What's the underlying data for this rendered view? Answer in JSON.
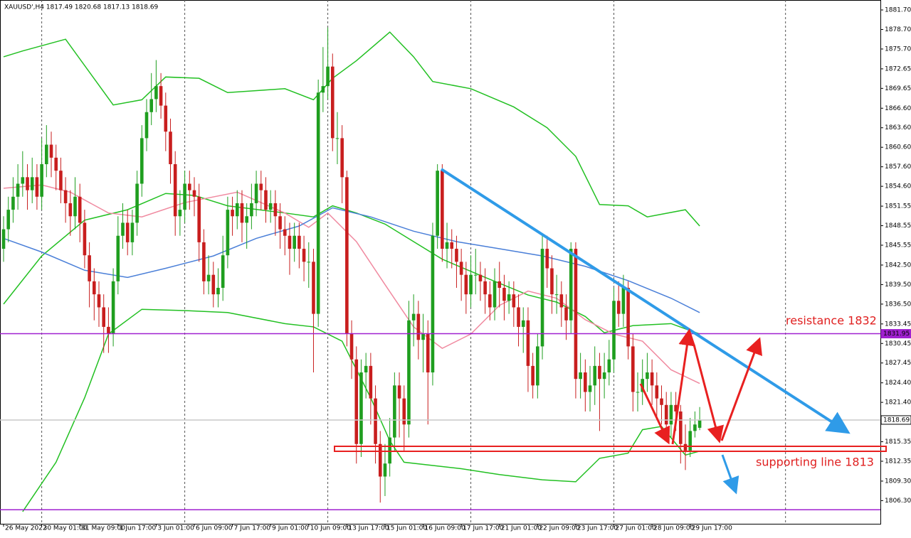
{
  "chart_data": {
    "type": "candlestick",
    "title": "XAUUSD',H4  1817.49 1820.68 1817.13 1818.69",
    "up_color": "#1f9e1f",
    "down_color": "#c81e1e",
    "open": [
      1845,
      1848,
      1851,
      1853,
      1855,
      1856,
      1854,
      1856,
      1853,
      1858,
      1861,
      1859,
      1857,
      1854,
      1852,
      1850,
      1853,
      1849,
      1844,
      1840,
      1838,
      1836,
      1833,
      1832,
      1840,
      1847,
      1849,
      1846,
      1849,
      1855,
      1862,
      1866,
      1868,
      1870,
      1867,
      1863,
      1858,
      1850,
      1851,
      1855,
      1854,
      1853,
      1846,
      1840,
      1841,
      1838,
      1839,
      1844,
      1851,
      1850,
      1852,
      1849,
      1850,
      1852,
      1855,
      1854,
      1851,
      1852,
      1850,
      1848,
      1847,
      1845,
      1847,
      1845,
      1843,
      1843,
      1835,
      1869,
      1870,
      1873,
      1862,
      1862,
      1856,
      1832,
      1828,
      1815,
      1826,
      1827,
      1822,
      1815,
      1810,
      1812,
      1816,
      1824,
      1822,
      1818,
      1834,
      1835,
      1831,
      1832,
      1826,
      1847,
      1857,
      1845,
      1846,
      1845,
      1843,
      1841,
      1838,
      1841,
      1841,
      1840,
      1838,
      1836,
      1840,
      1839,
      1837,
      1838,
      1836,
      1833,
      1834,
      1827,
      1824,
      1830,
      1845,
      1842,
      1838,
      1838,
      1836,
      1834,
      1845,
      1825,
      1826,
      1823,
      1824,
      1827,
      1825,
      1826,
      1828,
      1837,
      1835,
      1839,
      1830,
      1823,
      1823,
      1825,
      1826,
      1824,
      1822,
      1821,
      1818,
      1821,
      1820,
      1815,
      1814,
      1817,
      1817.49
    ],
    "high": [
      1850,
      1853,
      1856,
      1858,
      1860,
      1858,
      1859,
      1858,
      1862,
      1864,
      1863,
      1861,
      1859,
      1856,
      1854,
      1856,
      1855,
      1851,
      1846,
      1842,
      1840,
      1838,
      1836,
      1842,
      1850,
      1852,
      1851,
      1851,
      1857,
      1864,
      1868,
      1872,
      1874,
      1872,
      1869,
      1865,
      1860,
      1854,
      1857,
      1857,
      1856,
      1855,
      1848,
      1844,
      1843,
      1842,
      1847,
      1853,
      1853,
      1854,
      1854,
      1852,
      1855,
      1857,
      1857,
      1856,
      1854,
      1854,
      1852,
      1850,
      1849,
      1849,
      1849,
      1847,
      1846,
      1845,
      1871,
      1876,
      1879,
      1875,
      1866,
      1864,
      1857,
      1834,
      1830,
      1828,
      1829,
      1829,
      1824,
      1817,
      1815,
      1819,
      1826,
      1826,
      1824,
      1837,
      1838,
      1837,
      1835,
      1834,
      1849,
      1858,
      1858,
      1849,
      1848,
      1847,
      1845,
      1843,
      1844,
      1845,
      1843,
      1842,
      1840,
      1842,
      1843,
      1841,
      1840,
      1840,
      1838,
      1836,
      1836,
      1829,
      1832,
      1847,
      1847,
      1844,
      1841,
      1840,
      1838,
      1846,
      1846,
      1829,
      1828,
      1827,
      1830,
      1829,
      1829,
      1831,
      1839,
      1840,
      1841,
      1840,
      1832,
      1826,
      1828,
      1829,
      1828,
      1826,
      1824,
      1823,
      1823,
      1823,
      1821,
      1818,
      1819,
      1820,
      1820.68
    ],
    "low": [
      1843,
      1846,
      1849,
      1851,
      1853,
      1851,
      1852,
      1851,
      1851,
      1856,
      1856,
      1854,
      1852,
      1849,
      1847,
      1848,
      1846,
      1842,
      1836,
      1834,
      1833,
      1829,
      1829,
      1830,
      1838,
      1845,
      1844,
      1844,
      1847,
      1853,
      1860,
      1864,
      1866,
      1865,
      1860,
      1855,
      1847,
      1847,
      1849,
      1851,
      1850,
      1843,
      1838,
      1838,
      1836,
      1836,
      1837,
      1842,
      1847,
      1848,
      1846,
      1845,
      1848,
      1850,
      1851,
      1849,
      1849,
      1847,
      1845,
      1844,
      1841,
      1843,
      1842,
      1840,
      1839,
      1826,
      1833,
      1866,
      1868,
      1860,
      1858,
      1852,
      1830,
      1825,
      1812,
      1813,
      1822,
      1818,
      1812,
      1806,
      1807,
      1810,
      1814,
      1816,
      1814,
      1816,
      1830,
      1828,
      1826,
      1818,
      1824,
      1845,
      1843,
      1842,
      1842,
      1839,
      1837,
      1835,
      1836,
      1838,
      1837,
      1835,
      1834,
      1834,
      1836,
      1834,
      1835,
      1833,
      1830,
      1829,
      1823,
      1822,
      1822,
      1828,
      1839,
      1835,
      1835,
      1833,
      1831,
      1832,
      1822,
      1822,
      1820,
      1820,
      1821,
      1817,
      1822,
      1824,
      1826,
      1833,
      1833,
      1828,
      1820,
      1820,
      1821,
      1823,
      1821,
      1819,
      1818,
      1816,
      1816,
      1817,
      1812,
      1811,
      1813,
      1816,
      1817.13
    ],
    "close": [
      1848,
      1851,
      1853,
      1855,
      1856,
      1854,
      1856,
      1853,
      1858,
      1861,
      1859,
      1857,
      1854,
      1852,
      1850,
      1853,
      1849,
      1844,
      1840,
      1838,
      1836,
      1833,
      1832,
      1840,
      1847,
      1849,
      1846,
      1849,
      1855,
      1862,
      1866,
      1868,
      1870,
      1867,
      1863,
      1858,
      1850,
      1851,
      1855,
      1854,
      1853,
      1846,
      1840,
      1841,
      1838,
      1839,
      1844,
      1851,
      1850,
      1852,
      1849,
      1850,
      1852,
      1855,
      1854,
      1851,
      1852,
      1850,
      1848,
      1847,
      1845,
      1847,
      1845,
      1843,
      1843,
      1835,
      1869,
      1870,
      1873,
      1862,
      1862,
      1856,
      1832,
      1828,
      1815,
      1826,
      1827,
      1822,
      1815,
      1810,
      1812,
      1816,
      1824,
      1822,
      1818,
      1834,
      1835,
      1831,
      1832,
      1826,
      1847,
      1857,
      1845,
      1846,
      1845,
      1843,
      1841,
      1838,
      1841,
      1841,
      1840,
      1838,
      1836,
      1840,
      1839,
      1837,
      1838,
      1836,
      1833,
      1834,
      1827,
      1824,
      1830,
      1845,
      1842,
      1838,
      1838,
      1836,
      1834,
      1845,
      1825,
      1826,
      1823,
      1824,
      1827,
      1825,
      1826,
      1828,
      1837,
      1835,
      1839,
      1830,
      1823,
      1823,
      1825,
      1826,
      1824,
      1822,
      1821,
      1818,
      1821,
      1820,
      1815,
      1814,
      1817,
      1818,
      1818.69
    ],
    "overlays": [
      {
        "color": "#22c022",
        "x": [
          0,
          4,
          13,
          23,
          29,
          34,
          41,
          47,
          59,
          65,
          69,
          74,
          81,
          86,
          90,
          98,
          107,
          114,
          120,
          125,
          131,
          135,
          143,
          146
        ],
        "values": [
          1874.5,
          1875.4,
          1877.2,
          1867.1,
          1867.9,
          1871.4,
          1871.2,
          1869.0,
          1869.6,
          1867.9,
          1871.2,
          1873.9,
          1878.3,
          1874.5,
          1870.7,
          1869.6,
          1866.8,
          1863.6,
          1859.2,
          1851.8,
          1851.6,
          1849.9,
          1851.0,
          1848.5
        ]
      },
      {
        "color": "#22c022",
        "x": [
          0,
          8,
          17,
          26,
          34,
          40,
          47,
          59,
          65,
          69,
          74,
          80,
          86,
          92,
          101,
          110,
          116,
          122,
          126,
          132,
          140,
          146
        ],
        "values": [
          1836.5,
          1843.9,
          1849.4,
          1851.0,
          1853.5,
          1853.2,
          1851.6,
          1850.5,
          1849.9,
          1851.6,
          1850.5,
          1848.8,
          1846.1,
          1843.4,
          1840.6,
          1837.9,
          1836.8,
          1834.6,
          1832.1,
          1833.2,
          1833.5,
          1831.9
        ]
      },
      {
        "color": "#22c022",
        "x": [
          4,
          11,
          17,
          22,
          29,
          38,
          47,
          59,
          65,
          71,
          77,
          81,
          84,
          96,
          104,
          113,
          120,
          125,
          131,
          134,
          138,
          143,
          146
        ],
        "values": [
          1804.6,
          1812.2,
          1822.1,
          1831.9,
          1835.7,
          1835.5,
          1835.2,
          1833.5,
          1833.0,
          1830.8,
          1822.1,
          1815.5,
          1812.2,
          1811.2,
          1810.3,
          1809.5,
          1809.2,
          1812.8,
          1813.6,
          1817.2,
          1817.7,
          1813.3,
          1813.9
        ]
      },
      {
        "color": "#f08aa0",
        "x": [
          0,
          8,
          14,
          22,
          29,
          38,
          49,
          59,
          64,
          68,
          74,
          80,
          86,
          92,
          98,
          104,
          110,
          116,
          122,
          128,
          134,
          140,
          146
        ],
        "values": [
          1854.3,
          1854.8,
          1853.7,
          1850.5,
          1849.9,
          1852.1,
          1853.7,
          1850.5,
          1848.3,
          1850.5,
          1846.1,
          1839.5,
          1833.0,
          1829.7,
          1831.9,
          1836.3,
          1838.5,
          1837.4,
          1834.1,
          1831.9,
          1830.8,
          1826.4,
          1824.3
        ]
      },
      {
        "color": "#4a7fd8",
        "x": [
          0,
          8,
          17,
          26,
          34,
          44,
          53,
          62,
          69,
          77,
          86,
          95,
          104,
          113,
          122,
          131,
          140,
          146
        ],
        "values": [
          1846.6,
          1844.5,
          1841.7,
          1840.6,
          1842.0,
          1843.9,
          1846.6,
          1848.5,
          1851.3,
          1849.9,
          1847.7,
          1846.1,
          1845.0,
          1843.9,
          1842.3,
          1840.1,
          1837.4,
          1835.2
        ]
      }
    ],
    "levels": [
      {
        "value": 1831.95,
        "color": "#a020d0",
        "show_label": true
      },
      {
        "value": 1818.69,
        "color": "#c8c8c8",
        "show_label": true
      },
      {
        "value": 1804.9,
        "color": "#a020d0",
        "show_label": false
      }
    ],
    "xlim": [
      -0.75,
      183.9
    ],
    "ylim": [
      1802.74,
      1883.23
    ],
    "xgrid": [
      8,
      38,
      68,
      98,
      128,
      164
    ],
    "xticks": [
      {
        "value": 0,
        "label": "26 May 2022"
      },
      {
        "value": 8,
        "label": "30 May 01:00"
      },
      {
        "value": 16,
        "label": "31 May 09:00"
      },
      {
        "value": 24,
        "label": "1 Jun 17:00"
      },
      {
        "value": 32,
        "label": "3 Jun 01:00"
      },
      {
        "value": 40,
        "label": "6 Jun 09:00"
      },
      {
        "value": 48,
        "label": "7 Jun 17:00"
      },
      {
        "value": 56,
        "label": "9 Jun 01:00"
      },
      {
        "value": 64,
        "label": "10 Jun 09:00"
      },
      {
        "value": 72,
        "label": "13 Jun 17:00"
      },
      {
        "value": 80,
        "label": "15 Jun 01:00"
      },
      {
        "value": 88,
        "label": "16 Jun 09:00"
      },
      {
        "value": 96,
        "label": "17 Jun 17:00"
      },
      {
        "value": 104,
        "label": "21 Jun 01:00"
      },
      {
        "value": 112,
        "label": "22 Jun 09:00"
      },
      {
        "value": 120,
        "label": "23 Jun 17:00"
      },
      {
        "value": 128,
        "label": "27 Jun 01:00"
      },
      {
        "value": 136,
        "label": "28 Jun 09:00"
      },
      {
        "value": 144,
        "label": "29 Jun 17:00"
      }
    ],
    "yticks": [
      {
        "value": 1881.7,
        "label": "1881.70"
      },
      {
        "value": 1878.7,
        "label": "1878.70"
      },
      {
        "value": 1875.7,
        "label": "1875.70"
      },
      1872.65,
      1869.65,
      {
        "value": 1866.6,
        "label": "1866.60"
      },
      {
        "value": 1863.6,
        "label": "1863.60"
      },
      {
        "value": 1860.6,
        "label": "1860.60"
      },
      {
        "value": 1857.6,
        "label": "1857.60"
      },
      {
        "value": 1854.6,
        "label": "1854.60"
      },
      1851.55,
      1848.55,
      1845.55,
      {
        "value": 1842.5,
        "label": "1842.50"
      },
      {
        "value": 1839.5,
        "label": "1839.50"
      },
      {
        "value": 1836.5,
        "label": "1836.50"
      },
      1833.45,
      1830.45,
      1827.45,
      {
        "value": 1824.4,
        "label": "1824.40"
      },
      {
        "value": 1821.4,
        "label": "1821.40"
      },
      1815.35,
      1812.35,
      {
        "value": 1809.3,
        "label": "1809.30"
      },
      {
        "value": 1806.3,
        "label": "1806.30"
      }
    ],
    "annotations": [
      {
        "text": "resistance 1832",
        "color": "#e02020"
      },
      {
        "text": "supporting line 1813",
        "color": "#e02020"
      }
    ]
  }
}
